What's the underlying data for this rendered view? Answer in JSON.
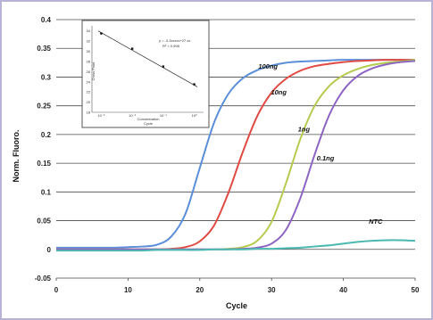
{
  "chart_data": [
    {
      "type": "line",
      "title": "",
      "xlabel": "Cycle",
      "ylabel": "Norm. Fluoro.",
      "xlim": [
        0,
        50
      ],
      "ylim": [
        -0.05,
        0.4
      ],
      "x_ticks": [
        "0",
        "10",
        "20",
        "30",
        "40",
        "50"
      ],
      "y_ticks": [
        "-0.05",
        "0",
        "0.05",
        "0.1",
        "0.15",
        "0.2",
        "0.25",
        "0.3",
        "0.35",
        "0.4"
      ],
      "grid": "horizontal",
      "x": [
        0,
        2,
        4,
        6,
        8,
        10,
        12,
        14,
        16,
        18,
        20,
        22,
        24,
        26,
        28,
        30,
        32,
        34,
        36,
        38,
        40,
        42,
        44,
        46,
        48,
        50
      ],
      "series": [
        {
          "name": "100ng",
          "color": "#5b8fd9",
          "values": [
            0.003,
            0.003,
            0.003,
            0.003,
            0.003,
            0.004,
            0.005,
            0.008,
            0.022,
            0.062,
            0.142,
            0.221,
            0.271,
            0.298,
            0.312,
            0.32,
            0.325,
            0.327,
            0.328,
            0.329,
            0.33,
            0.33,
            0.33,
            0.33,
            0.33,
            0.33
          ]
        },
        {
          "name": "10ng",
          "color": "#e14a42",
          "values": [
            0.0,
            0.0,
            0.0,
            0.0,
            0.0,
            0.0,
            0.0,
            0.0,
            0.001,
            0.004,
            0.014,
            0.042,
            0.099,
            0.17,
            0.232,
            0.273,
            0.297,
            0.311,
            0.319,
            0.323,
            0.326,
            0.328,
            0.329,
            0.33,
            0.33,
            0.33
          ]
        },
        {
          "name": "1ng",
          "color": "#b5cb4f",
          "values": [
            0.0,
            0.0,
            0.0,
            0.0,
            0.0,
            0.0,
            0.0,
            0.0,
            0.0,
            0.0,
            0.0,
            0.0,
            0.001,
            0.004,
            0.015,
            0.048,
            0.115,
            0.192,
            0.25,
            0.284,
            0.303,
            0.314,
            0.321,
            0.325,
            0.327,
            0.33
          ]
        },
        {
          "name": "0.1ng",
          "color": "#8d64c2",
          "values": [
            0.0,
            0.0,
            0.0,
            0.0,
            0.0,
            0.0,
            0.0,
            0.0,
            0.0,
            0.0,
            0.0,
            0.0,
            0.0,
            0.001,
            0.003,
            0.01,
            0.034,
            0.089,
            0.165,
            0.233,
            0.277,
            0.302,
            0.315,
            0.322,
            0.326,
            0.328
          ]
        },
        {
          "name": "NTC",
          "color": "#4cb8b2",
          "values": [
            -0.002,
            -0.002,
            -0.002,
            -0.002,
            -0.002,
            -0.002,
            -0.002,
            -0.001,
            -0.001,
            -0.001,
            -0.001,
            0.0,
            0.0,
            0.0,
            0.001,
            0.001,
            0.002,
            0.003,
            0.005,
            0.007,
            0.01,
            0.013,
            0.015,
            0.016,
            0.016,
            0.015
          ]
        }
      ]
    },
    {
      "type": "scatter",
      "title": "",
      "xlabel": "Concentration",
      "ylabel": "Cross Point",
      "note_x": "Cycle",
      "equation": "y = -3.3xxxxx+27.xx",
      "r_squared": "R² = 0.998",
      "x_tick_labels": [
        "10⁻³",
        "10⁻²",
        "10⁻¹",
        "10⁰"
      ],
      "y_tick_labels": [
        "34",
        "32",
        "30",
        "28",
        "26",
        "24",
        "22",
        "20",
        "18"
      ],
      "x": [
        -3,
        -2,
        -1,
        0
      ],
      "values": [
        33.5,
        30.5,
        27.0,
        23.5
      ],
      "fit": {
        "x": [
          -3.1,
          0.1
        ],
        "y": [
          34.0,
          23.0
        ]
      },
      "ylim": [
        18,
        35
      ]
    }
  ],
  "icons": {
    "frame": "chart-frame"
  }
}
